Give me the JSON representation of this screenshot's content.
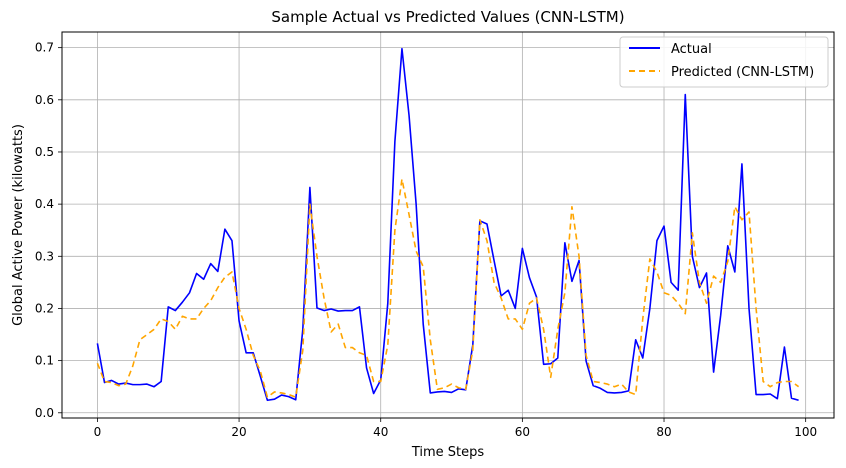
{
  "chart_data": {
    "type": "line",
    "title": "Sample Actual vs Predicted Values (CNN-LSTM)",
    "xlabel": "Time Steps",
    "ylabel": "Global Active Power (kilowatts)",
    "xlim": [
      -5,
      104
    ],
    "ylim": [
      -0.01,
      0.73
    ],
    "xticks": [
      0,
      20,
      40,
      60,
      80,
      100
    ],
    "yticks": [
      0.0,
      0.1,
      0.2,
      0.3,
      0.4,
      0.5,
      0.6,
      0.7
    ],
    "ytick_labels": [
      "0.0",
      "0.1",
      "0.2",
      "0.3",
      "0.4",
      "0.5",
      "0.6",
      "0.7"
    ],
    "grid": true,
    "legend_position": "top-right",
    "series": [
      {
        "name": "Actual",
        "color": "#0000ff",
        "style": "solid",
        "x": [
          0,
          1,
          2,
          3,
          4,
          5,
          6,
          7,
          8,
          9,
          10,
          11,
          12,
          13,
          14,
          15,
          16,
          17,
          18,
          19,
          20,
          21,
          22,
          23,
          24,
          25,
          26,
          27,
          28,
          29,
          30,
          31,
          32,
          33,
          34,
          35,
          36,
          37,
          38,
          39,
          40,
          41,
          42,
          43,
          44,
          45,
          46,
          47,
          48,
          49,
          50,
          51,
          52,
          53,
          54,
          55,
          56,
          57,
          58,
          59,
          60,
          61,
          62,
          63,
          64,
          65,
          66,
          67,
          68,
          69,
          70,
          71,
          72,
          73,
          74,
          75,
          76,
          77,
          78,
          79,
          80,
          81,
          82,
          83,
          84,
          85,
          86,
          87,
          88,
          89,
          90,
          91,
          92,
          93,
          94,
          95,
          96,
          97,
          98,
          99
        ],
        "values": [
          0.133,
          0.058,
          0.062,
          0.055,
          0.057,
          0.054,
          0.054,
          0.055,
          0.05,
          0.06,
          0.203,
          0.196,
          0.212,
          0.23,
          0.267,
          0.256,
          0.286,
          0.271,
          0.352,
          0.33,
          0.176,
          0.115,
          0.115,
          0.07,
          0.024,
          0.026,
          0.034,
          0.031,
          0.025,
          0.16,
          0.432,
          0.201,
          0.196,
          0.199,
          0.195,
          0.196,
          0.196,
          0.203,
          0.086,
          0.037,
          0.063,
          0.21,
          0.52,
          0.698,
          0.57,
          0.4,
          0.17,
          0.038,
          0.04,
          0.041,
          0.039,
          0.046,
          0.044,
          0.13,
          0.368,
          0.362,
          0.292,
          0.224,
          0.235,
          0.2,
          0.315,
          0.259,
          0.222,
          0.093,
          0.094,
          0.105,
          0.326,
          0.252,
          0.292,
          0.099,
          0.052,
          0.047,
          0.039,
          0.038,
          0.039,
          0.042,
          0.14,
          0.105,
          0.2,
          0.33,
          0.358,
          0.25,
          0.235,
          0.61,
          0.3,
          0.24,
          0.268,
          0.078,
          0.187,
          0.32,
          0.27,
          0.477,
          0.2,
          0.035,
          0.035,
          0.036,
          0.027,
          0.126,
          0.028,
          0.024
        ]
      },
      {
        "name": "Predicted (CNN-LSTM)",
        "color": "#ffa500",
        "style": "dashed",
        "x": [
          0,
          1,
          2,
          3,
          4,
          5,
          6,
          7,
          8,
          9,
          10,
          11,
          12,
          13,
          14,
          15,
          16,
          17,
          18,
          19,
          20,
          21,
          22,
          23,
          24,
          25,
          26,
          27,
          28,
          29,
          30,
          31,
          32,
          33,
          34,
          35,
          36,
          37,
          38,
          39,
          40,
          41,
          42,
          43,
          44,
          45,
          46,
          47,
          48,
          49,
          50,
          51,
          52,
          53,
          54,
          55,
          56,
          57,
          58,
          59,
          60,
          61,
          62,
          63,
          64,
          65,
          66,
          67,
          68,
          69,
          70,
          71,
          72,
          73,
          74,
          75,
          76,
          77,
          78,
          79,
          80,
          81,
          82,
          83,
          84,
          85,
          86,
          87,
          88,
          89,
          90,
          91,
          92,
          93,
          94,
          95,
          96,
          97,
          98,
          99
        ],
        "values": [
          0.095,
          0.06,
          0.058,
          0.052,
          0.055,
          0.09,
          0.14,
          0.15,
          0.16,
          0.18,
          0.175,
          0.16,
          0.185,
          0.18,
          0.18,
          0.2,
          0.215,
          0.24,
          0.26,
          0.27,
          0.2,
          0.16,
          0.11,
          0.08,
          0.03,
          0.04,
          0.038,
          0.035,
          0.03,
          0.12,
          0.4,
          0.3,
          0.22,
          0.155,
          0.17,
          0.125,
          0.125,
          0.115,
          0.11,
          0.06,
          0.06,
          0.13,
          0.35,
          0.448,
          0.38,
          0.31,
          0.28,
          0.14,
          0.045,
          0.048,
          0.055,
          0.048,
          0.045,
          0.12,
          0.37,
          0.33,
          0.25,
          0.22,
          0.18,
          0.18,
          0.16,
          0.21,
          0.22,
          0.16,
          0.068,
          0.16,
          0.23,
          0.395,
          0.3,
          0.11,
          0.06,
          0.058,
          0.055,
          0.05,
          0.055,
          0.04,
          0.035,
          0.18,
          0.295,
          0.27,
          0.23,
          0.225,
          0.21,
          0.19,
          0.345,
          0.25,
          0.21,
          0.262,
          0.25,
          0.29,
          0.395,
          0.37,
          0.385,
          0.2,
          0.06,
          0.05,
          0.058,
          0.06,
          0.06,
          0.05
        ]
      }
    ]
  }
}
